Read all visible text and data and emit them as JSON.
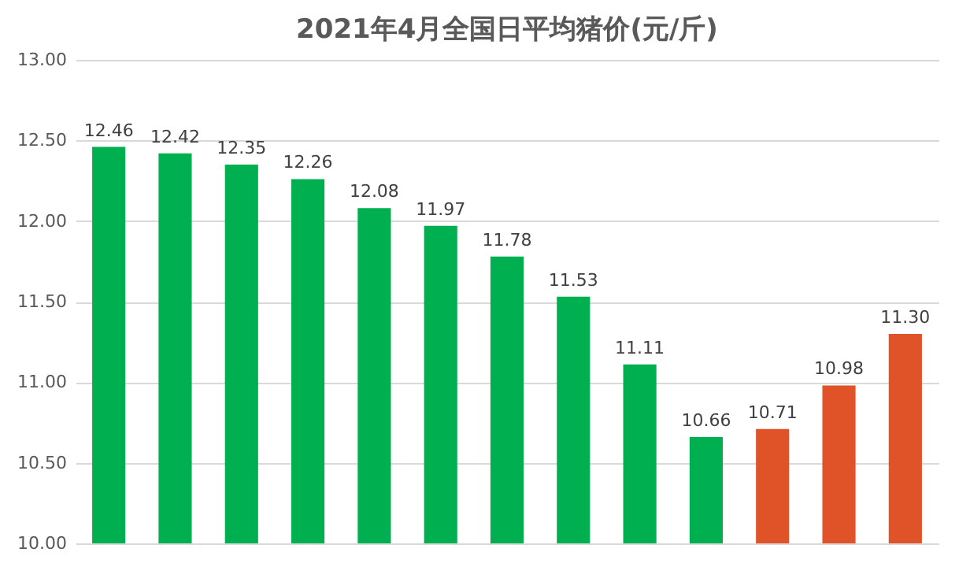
{
  "chart_data": {
    "type": "bar",
    "title": "2021年4月全国日平均猪价(元/斤)",
    "categories": [
      null,
      null,
      null,
      null,
      null,
      null,
      null,
      null,
      null,
      null,
      null,
      null,
      null
    ],
    "values": [
      12.46,
      12.42,
      12.35,
      12.26,
      12.08,
      11.97,
      11.78,
      11.53,
      11.11,
      10.66,
      10.71,
      10.98,
      11.3
    ],
    "value_labels": [
      "12.46",
      "12.42",
      "12.35",
      "12.26",
      "12.08",
      "11.97",
      "11.78",
      "11.53",
      "11.11",
      "10.66",
      "10.71",
      "10.98",
      "11.30"
    ],
    "colors": [
      "#00b050",
      "#00b050",
      "#00b050",
      "#00b050",
      "#00b050",
      "#00b050",
      "#00b050",
      "#00b050",
      "#00b050",
      "#00b050",
      "#e05227",
      "#e05227",
      "#e05227"
    ],
    "ylim": [
      10,
      13
    ],
    "yticks": [
      {
        "value": 10,
        "label": "10.00"
      },
      {
        "value": 10.5,
        "label": "10.50"
      },
      {
        "value": 11,
        "label": "11.00"
      },
      {
        "value": 11.5,
        "label": "11.50"
      },
      {
        "value": 12,
        "label": "12.00"
      },
      {
        "value": 12.5,
        "label": "12.50"
      },
      {
        "value": 13,
        "label": "13.00"
      }
    ],
    "grid": "y",
    "tick_labels": "y"
  }
}
